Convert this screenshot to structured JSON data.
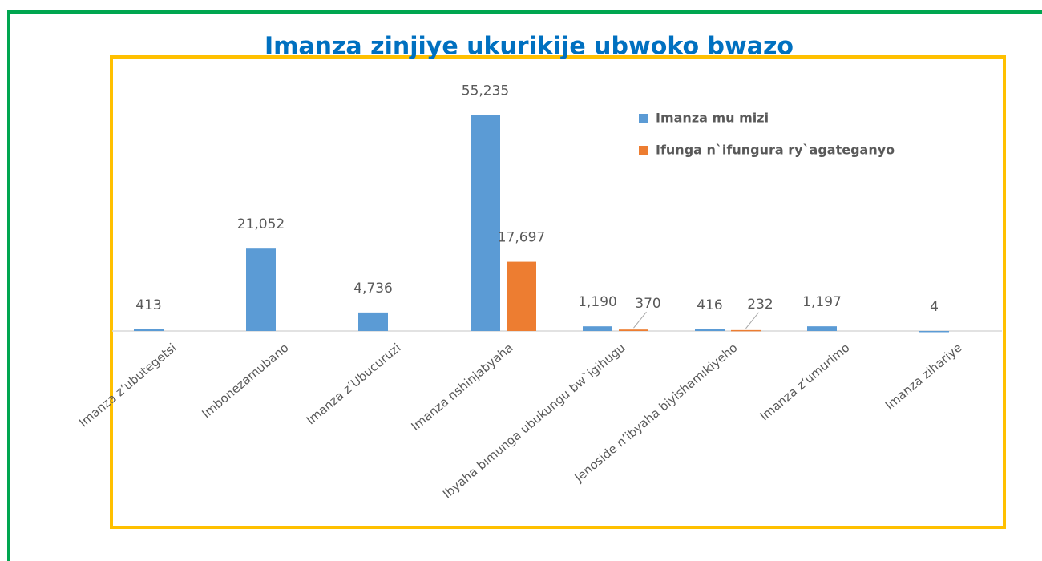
{
  "chart_data": {
    "type": "bar",
    "title": "Imanza zinjiye ukurikije ubwoko bwazo",
    "categories": [
      "Imanza z’ubutegetsi",
      "Imbonezamubano",
      "Imanza z’Ubucuruzi",
      "Imanza nshinjabyaha",
      "Ibyaha bimunga ubukungu bw`igihugu",
      "Jenoside n’ibyaha biyishamikiyeho",
      "Imanza z’umurimo",
      "Imanza zihariye"
    ],
    "series": [
      {
        "name": "Imanza mu mizi",
        "color": "#5b9bd5",
        "values": [
          413,
          21052,
          4736,
          55235,
          1190,
          416,
          1197,
          4
        ],
        "value_labels": [
          "413",
          "21,052",
          "4,736",
          "55,235",
          "1,190",
          "416",
          "1,197",
          "4"
        ]
      },
      {
        "name": "Ifunga n`ifungura ry`agateganyo",
        "color": "#ed7d31",
        "values": [
          null,
          null,
          null,
          17697,
          370,
          232,
          null,
          null
        ],
        "value_labels": [
          null,
          null,
          null,
          "17,697",
          "370",
          "232",
          null,
          null
        ]
      }
    ],
    "ylim": [
      0,
      60000
    ],
    "legend": "top-right"
  }
}
